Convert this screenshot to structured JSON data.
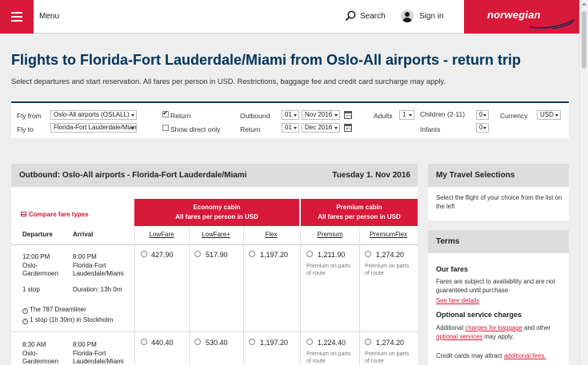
{
  "header": {
    "menu_label": "Menu",
    "search_label": "Search",
    "signin_label": "Sign in",
    "logo_text": "norwegian",
    "brand_color": "#d81939",
    "icons": [
      "hamburger-icon",
      "search-icon",
      "user-icon"
    ]
  },
  "page": {
    "title": "Flights to Florida-Fort Lauderdale/Miami from Oslo-All airports - return trip",
    "subtitle": "Select departures and start reservation. All fares per person in USD. Restrictions, baggage fee and credit card surcharge may apply.",
    "title_color": "#00345c"
  },
  "search_form": {
    "fly_from_label": "Fly from",
    "fly_from_value": "Oslo-All airports (OSLALL)",
    "fly_to_label": "Fly to",
    "fly_to_value": "Florida-Fort Lauderdale/Miami",
    "return_label": "Return",
    "return_checked": true,
    "direct_only_label": "Show direct only",
    "direct_only_checked": false,
    "outbound_label": "Outbound",
    "outbound_day": "01",
    "outbound_month": "Nov 2016",
    "return_date_label": "Return",
    "return_day": "01",
    "return_month": "Dec 2016",
    "adults_label": "Adults",
    "adults_value": "1",
    "children_label": "Children (2-11)",
    "children_value": "0",
    "infants_label": "Infants",
    "infants_value": "0",
    "currency_label": "Currency",
    "currency_value": "USD"
  },
  "outbound": {
    "heading": "Outbound:  Oslo-All airports - Florida-Fort Lauderdale/Miami",
    "date": "Tuesday 1. Nov 2016",
    "compare_label": "Compare fare types",
    "departure_col": "Departure",
    "arrival_col": "Arrival",
    "economy_cabin": "Economy cabin",
    "economy_note": "All fares per person in USD",
    "premium_cabin": "Premium cabin",
    "premium_note": "All fares per person in USD",
    "fare_types": [
      "LowFare",
      "LowFare+",
      "Flex",
      "Premium",
      "PremiumFlex"
    ],
    "premium_route_note_line1": "Premium on parts",
    "premium_route_note_line2": "of route",
    "flights": [
      {
        "dep_time": "12:00 PM",
        "dep_airport_1": "Oslo-",
        "dep_airport_2": "Gardermoen",
        "arr_time": "8:00 PM",
        "arr_airport_1": "Florida-Fort",
        "arr_airport_2": "Lauderdale/Miami",
        "stops": "1 stop",
        "duration": "Duration: 13h 0m",
        "aircraft": "The 787 Dreamliner",
        "stopover": "1 stop (1h 30m) in Stockholm",
        "prices": [
          "427.90",
          "517.90",
          "1,197.20",
          "1,211.90",
          "1,274.20"
        ]
      },
      {
        "dep_time": "8:30 AM",
        "dep_airport_1": "Oslo-",
        "dep_airport_2": "Gardermoen",
        "arr_time": "8:00 PM",
        "arr_airport_1": "Florida-Fort",
        "arr_airport_2": "Lauderdale/Miami",
        "prices": [
          "440.40",
          "530.40",
          "1,197.20",
          "1,224.40",
          "1,274.20"
        ]
      }
    ]
  },
  "sidebar": {
    "travel_heading": "My Travel Selections",
    "travel_text": "Select the flight of your choice from the list on the left",
    "terms_heading": "Terms",
    "our_fares_heading": "Our fares",
    "our_fares_text": "Fares are subject to availability and are not guaranteed until purchase.",
    "fare_details_link": "See fare details",
    "optional_heading": "Optional service charges",
    "optional_text_1": "Additional",
    "baggage_link": "charges for baggage",
    "optional_text_2": "and other",
    "optional_services_link": "optional services",
    "optional_text_3": "may apply.",
    "credit_text": "Credit cards may attract",
    "additional_fees_link": "additional fees."
  }
}
